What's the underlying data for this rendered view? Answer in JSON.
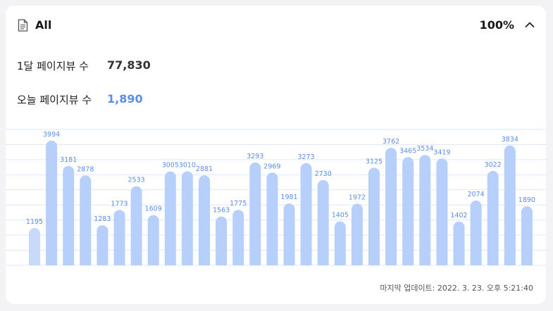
{
  "header": {
    "title": "All",
    "percent": "100%",
    "doc_icon": "document-icon",
    "collapse_icon": "chevron-up-icon"
  },
  "stats": {
    "monthly_label": "1달 페이지뷰 수",
    "monthly_value": "77,830",
    "today_label": "오늘 페이지뷰 수",
    "today_value": "1,890"
  },
  "updated_text": "마지막 업데이트: 2022. 3. 23. 오후 5:21:40",
  "colors": {
    "bar": "#b7cffb",
    "bar_first": "#c8dafc",
    "label": "#5b8fe8",
    "grid": "#dde9fb",
    "value_blue": "#5b8fe8"
  },
  "chart_data": {
    "type": "bar",
    "values": [
      1195,
      3994,
      3181,
      2878,
      1283,
      1773,
      2533,
      1609,
      3005,
      3010,
      2881,
      1563,
      1775,
      3293,
      2969,
      1981,
      3273,
      2730,
      1405,
      1972,
      3125,
      3762,
      3465,
      3534,
      3419,
      1402,
      2074,
      3022,
      3834,
      1890
    ],
    "ylim": [
      0,
      4350
    ],
    "grid": true,
    "data_labels": true
  }
}
